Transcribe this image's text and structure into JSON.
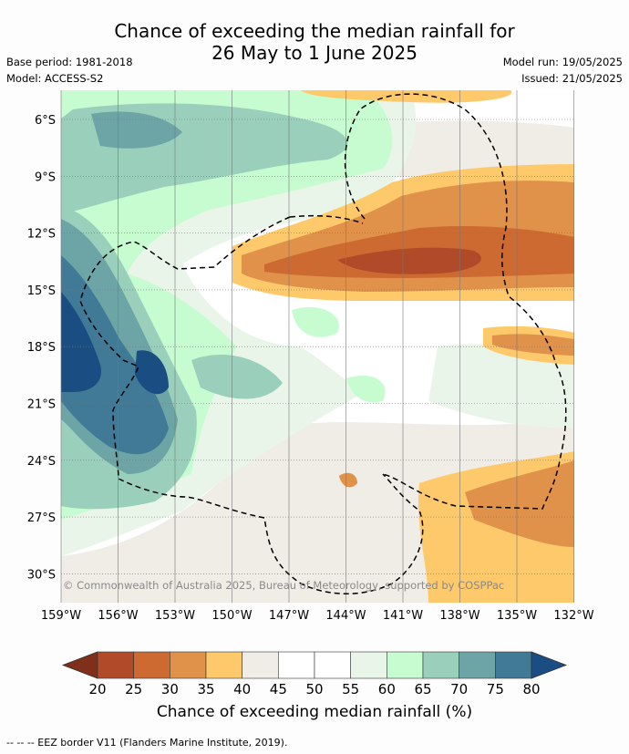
{
  "title": {
    "line1": "Chance of exceeding the median rainfall for",
    "line2": "26 May to 1 June 2025"
  },
  "meta": {
    "base_period": "Base period: 1981-2018",
    "model": "Model: ACCESS-S2",
    "model_run": "Model run: 19/05/2025",
    "issued": "Issued: 21/05/2025"
  },
  "map": {
    "copyright": "© Commonwealth of Australia 2025, Bureau of Meteorology, supported by COSPPac",
    "lat_labels": [
      "6°S",
      "9°S",
      "12°S",
      "15°S",
      "18°S",
      "21°S",
      "24°S",
      "27°S",
      "30°S"
    ],
    "lon_labels": [
      "159°W",
      "156°W",
      "153°W",
      "150°W",
      "147°W",
      "144°W",
      "141°W",
      "138°W",
      "135°W",
      "132°W"
    ],
    "colorbar": {
      "ticks": [
        "20",
        "25",
        "30",
        "35",
        "40",
        "45",
        "50",
        "55",
        "60",
        "65",
        "70",
        "75",
        "80"
      ],
      "colors": [
        "#7f2f1a",
        "#b04a28",
        "#cd6a32",
        "#e0914a",
        "#fdc96a",
        "#f0ece6",
        "#ffffff",
        "#ffffff",
        "#eaf5ea",
        "#c6fcd0",
        "#99cfbb",
        "#6da5a6",
        "#417a96",
        "#1a4d82"
      ],
      "label": "Chance of exceeding median rainfall (%)"
    },
    "footnote": "--  --  -- EEZ border V11 (Flanders Marine Institute, 2019)."
  }
}
